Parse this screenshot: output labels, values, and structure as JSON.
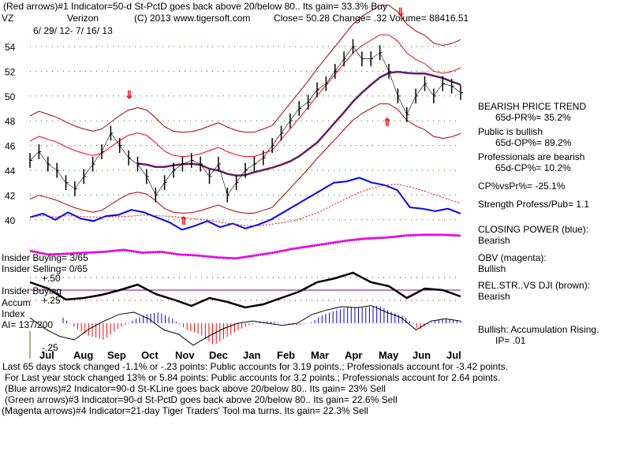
{
  "header": {
    "line1": "(Red arrows)#1 Indicator=50-d St-PctD goes back above 20/below 80.. Its gain= 33.3% Buy",
    "ticker": "VZ",
    "name": "Verizon",
    "copyright": "(C) 2013 www.tigersoft.com",
    "close": "Close=  50.28  Change= .32 Volume= 88416.51",
    "range": "6/ 29/ 12- 7/ 16/ 13"
  },
  "left_labels": {
    "insider_buying": "Insider Buying= 3/65",
    "insider_selling": "Insider Selling= 0/65",
    "insider_buying2": "Insider Buying",
    "accum": "Accum",
    "index": "Index",
    "ai": "AI= 137/200",
    "p50": "+.50",
    "p25": "+.25",
    "m25": "-.25"
  },
  "right": {
    "trend": "BEARISH PRICE TREND",
    "pr": "65d-PR%= 35.2%",
    "public": "Public is bullish",
    "op": "65d-OP%= 89.2%",
    "pros": "Professionals are bearish",
    "cp": "65d-CP%= 10.2%",
    "cpvspr": "CP%vsPr%= -25.1%",
    "strength": "Strength Profess/Pub= 1.1",
    "cp_title": "CLOSING POWER (blue):",
    "cp_val": "Bearish",
    "obv_title": "OBV (magenta):",
    "obv_val": "Bullish",
    "rel_title": "REL.STR..VS DJI (brown):",
    "rel_val": "Bearish",
    "bullish": "Bullish: Accumulation Rising.",
    "ip": "IP=  .01"
  },
  "footer": {
    "l1": "Last 65 days stock changed -1.1% or -.23 points:  Public accounts for  3.19 points.;  Professionals account for -3.42 points.",
    "l2": "For Last year stock changed  13% or  5.84 points:  Public accounts for  3.2 points.;  Professionals account for  2.64 points.",
    "l3": "(Blue arrows)#2 Indicator=90-d St-KLine goes back above 20/below 80.. Its gain= 23% Sell",
    "l4": "(Green arrows)#3 Indicator=90-d St-PctD goes back above 20/below 80.. Its gain= 22.6% Sell",
    "l5": "(Magenta arrows)#4 Indicator=21-day Tiger Traders' Tool ma turns. Its gain= 22.3% Sell"
  },
  "chart_data": {
    "type": "line",
    "title": "VZ Verizon",
    "ylim": [
      39,
      55
    ],
    "yticks": [
      40,
      42,
      44,
      46,
      48,
      50,
      52,
      54
    ],
    "months": [
      "Jul",
      "Aug",
      "Sep",
      "Oct",
      "Nov",
      "Dec",
      "Jan",
      "Feb",
      "Mar",
      "Apr",
      "May",
      "Jun",
      "Jul"
    ],
    "price": [
      44.8,
      45.5,
      44.5,
      44,
      43,
      42.5,
      43.5,
      44.5,
      45.5,
      47,
      46,
      45,
      44.5,
      43.5,
      42,
      43,
      44,
      44.5,
      44.8,
      44.5,
      43.5,
      44.5,
      42,
      43,
      44,
      44.5,
      45,
      46,
      47,
      48,
      49,
      49.5,
      50.5,
      51,
      52,
      53,
      54,
      53,
      53,
      53.5,
      52,
      50,
      48.5,
      50,
      51,
      50,
      51,
      50.8,
      50.28
    ],
    "closing_power": [
      40.2,
      40.5,
      40,
      40.6,
      40.1,
      39.9,
      40.3,
      40.4,
      40.8,
      40.6,
      40.2,
      39.8,
      39.2,
      39.5,
      39.9,
      39.4,
      39.7,
      39.3,
      39.6,
      40,
      40.6,
      41.2,
      41.8,
      42.4,
      43,
      43.1,
      43.4,
      43,
      42.8,
      42.4,
      41,
      40.9,
      40.7,
      40.9,
      40.5
    ],
    "obv": [
      9,
      8.6,
      8.7,
      8.8,
      8.9,
      9.1,
      8.8,
      8.9,
      8.6,
      8.5,
      8.3,
      8.2,
      8.5,
      8.8,
      9.2,
      9.5,
      9.8,
      10.1,
      10.3,
      10.4,
      10.6,
      10.7,
      10.7,
      10.6
    ],
    "rel_str": [
      0.5,
      0.42,
      0.28,
      0.3,
      0.34,
      0.4,
      0.47,
      0.35,
      0.28,
      0.2,
      0.3,
      0.25,
      0.18,
      0.22,
      0.3,
      0.38,
      0.5,
      0.55,
      0.62,
      0.5,
      0.45,
      0.3,
      0.42,
      0.4,
      0.32
    ],
    "accum_index": [
      0.05,
      -0.05,
      -0.12,
      -0.15,
      -0.05,
      0.02,
      0.08,
      0.1,
      0.04,
      -0.06,
      -0.1,
      -0.2,
      -0.12,
      -0.05,
      0.0,
      0.02,
      0.0,
      -0.02,
      0.0,
      0.08,
      0.12,
      0.15,
      0.14,
      0.16,
      0.1,
      0.05,
      -0.06,
      0.02,
      0.04,
      0.02
    ],
    "arrows": [
      {
        "color": "red",
        "dir": "down",
        "month": "Sep"
      },
      {
        "color": "red",
        "dir": "up",
        "month": "Nov"
      },
      {
        "color": "red",
        "dir": "down",
        "month": "May"
      },
      {
        "color": "red",
        "dir": "up",
        "month": "May"
      }
    ]
  }
}
